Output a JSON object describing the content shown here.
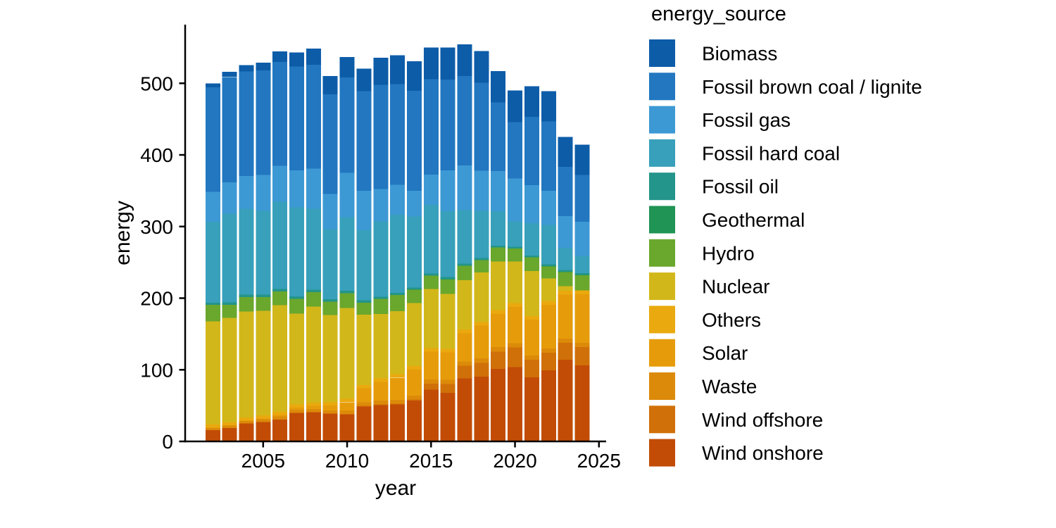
{
  "figure": {
    "background": "#ffffff",
    "axis_color": "#000000",
    "text_color": "#000000"
  },
  "chart_data": {
    "type": "bar",
    "stacked": true,
    "title": "",
    "xlabel": "year",
    "ylabel": "energy",
    "legend_title": "energy_source",
    "legend_position": "right",
    "grid": false,
    "bar_gap_color": "#ffffff",
    "xlim": [
      2001.4,
      2025.5
    ],
    "ylim": [
      0,
      580
    ],
    "x_ticks": [
      "2005",
      "2010",
      "2015",
      "2020",
      "2025"
    ],
    "x_tick_years": [
      2005,
      2010,
      2015,
      2020,
      2025
    ],
    "y_ticks": [
      "0",
      "100",
      "200",
      "300",
      "400",
      "500"
    ],
    "y_tick_values": [
      0,
      100,
      200,
      300,
      400,
      500
    ],
    "years": [
      2002,
      2003,
      2004,
      2005,
      2006,
      2007,
      2008,
      2009,
      2010,
      2011,
      2012,
      2013,
      2014,
      2015,
      2016,
      2017,
      2018,
      2019,
      2020,
      2021,
      2022,
      2023,
      2024
    ],
    "stack_note": "series listed top-of-stack first; legend order matches",
    "series": [
      {
        "name": "Biomass",
        "color": "#0d5ca8",
        "values": [
          5.4,
          7.0,
          8.5,
          11.0,
          14.5,
          19.5,
          22.5,
          25.5,
          28.5,
          31.5,
          38.0,
          40.0,
          41.5,
          44.0,
          44.5,
          44.5,
          44.2,
          43.9,
          44.5,
          42.7,
          42.3,
          41.7,
          42.5
        ]
      },
      {
        "name": "Fossil brown coal / lignite",
        "color": "#2277c0",
        "values": [
          146.0,
          147.0,
          146.0,
          146.0,
          145.0,
          145.0,
          145.0,
          139.0,
          133.0,
          139.0,
          145.5,
          140.5,
          139.5,
          133.5,
          127.0,
          125.0,
          123.0,
          96.0,
          78.5,
          95.0,
          97.0,
          69.0,
          65.0
        ]
      },
      {
        "name": "Fossil gas",
        "color": "#3d99d4",
        "values": [
          41.6,
          44.0,
          46.0,
          50.0,
          50.0,
          52.0,
          56.0,
          49.0,
          62.0,
          55.0,
          45.0,
          42.0,
          36.0,
          42.0,
          57.0,
          62.0,
          56.0,
          55.7,
          60.0,
          53.5,
          47.5,
          44.0,
          48.0
        ]
      },
      {
        "name": "Fossil hard coal",
        "color": "#38a0bb",
        "values": [
          113.0,
          124.0,
          120.0,
          117.0,
          122.0,
          124.0,
          113.0,
          98.0,
          103.0,
          98.0,
          105.0,
          109.0,
          99.0,
          96.0,
          92.0,
          75.0,
          66.0,
          48.0,
          35.3,
          44.9,
          55.0,
          31.0,
          24.0
        ]
      },
      {
        "name": "Fossil oil",
        "color": "#23958a",
        "values": [
          3.0,
          3.2,
          3.3,
          3.4,
          3.4,
          3.5,
          3.6,
          3.3,
          3.2,
          3.1,
          3.0,
          2.9,
          2.8,
          2.8,
          2.8,
          2.8,
          2.7,
          2.6,
          2.5,
          2.6,
          2.8,
          2.6,
          2.5
        ]
      },
      {
        "name": "Geothermal",
        "color": "#1f9455",
        "values": [
          0.0,
          0.0,
          0.0,
          0.0,
          0.0,
          0.0,
          0.0,
          0.0,
          0.0,
          0.0,
          0.1,
          0.1,
          0.1,
          0.1,
          0.2,
          0.2,
          0.2,
          0.2,
          0.2,
          0.2,
          0.2,
          0.2,
          0.2
        ]
      },
      {
        "name": "Hydro",
        "color": "#6aa72d",
        "values": [
          23.0,
          18.0,
          20.0,
          19.0,
          19.5,
          20.5,
          20.0,
          18.5,
          20.5,
          17.0,
          21.0,
          22.5,
          19.0,
          18.5,
          20.5,
          20.0,
          17.0,
          19.5,
          18.0,
          19.0,
          17.0,
          19.8,
          21.2
        ]
      },
      {
        "name": "Nuclear",
        "color": "#d2b71a",
        "values": [
          144.3,
          146.0,
          148.0,
          146.0,
          148.6,
          127.0,
          134.0,
          122.0,
          127.0,
          98.0,
          90.0,
          88.0,
          87.9,
          83.0,
          76.5,
          69.0,
          69.3,
          68.0,
          58.3,
          62.6,
          31.4,
          6.4,
          0.0
        ]
      },
      {
        "name": "Others",
        "color": "#eaa90e",
        "values": [
          4.3,
          4.3,
          4.4,
          4.4,
          4.5,
          4.5,
          4.6,
          4.6,
          4.7,
          4.7,
          4.8,
          4.8,
          4.9,
          4.9,
          5.0,
          5.0,
          5.1,
          5.1,
          5.2,
          5.2,
          5.3,
          5.4,
          5.5
        ]
      },
      {
        "name": "Solar",
        "color": "#e69c0a",
        "values": [
          0.2,
          0.3,
          0.6,
          1.3,
          2.2,
          3.1,
          4.4,
          6.6,
          11.7,
          19.3,
          26.4,
          31.0,
          36.1,
          38.7,
          38.1,
          39.4,
          45.8,
          46.5,
          50.7,
          50.0,
          60.8,
          61.6,
          68.0
        ]
      },
      {
        "name": "Waste",
        "color": "#dc8a09",
        "values": [
          3.0,
          3.2,
          3.4,
          3.6,
          4.0,
          4.3,
          4.6,
          4.8,
          5.1,
          5.3,
          5.5,
          5.6,
          5.7,
          5.8,
          5.9,
          6.0,
          6.1,
          6.1,
          6.0,
          6.0,
          5.9,
          5.8,
          5.7
        ]
      },
      {
        "name": "Wind offshore",
        "color": "#d07008",
        "values": [
          0.0,
          0.0,
          0.0,
          0.0,
          0.0,
          0.0,
          0.0,
          0.0,
          0.2,
          0.6,
          0.7,
          0.9,
          1.4,
          8.3,
          12.4,
          17.7,
          19.3,
          24.4,
          27.3,
          24.4,
          24.8,
          23.5,
          25.7
        ]
      },
      {
        "name": "Wind onshore",
        "color": "#c24c06",
        "values": [
          15.9,
          18.9,
          25.0,
          27.2,
          30.7,
          39.7,
          40.6,
          38.6,
          37.8,
          48.9,
          50.7,
          51.7,
          57.0,
          72.3,
          67.9,
          88.0,
          90.5,
          101.1,
          103.7,
          89.6,
          99.2,
          114.0,
          106.0
        ]
      }
    ]
  }
}
